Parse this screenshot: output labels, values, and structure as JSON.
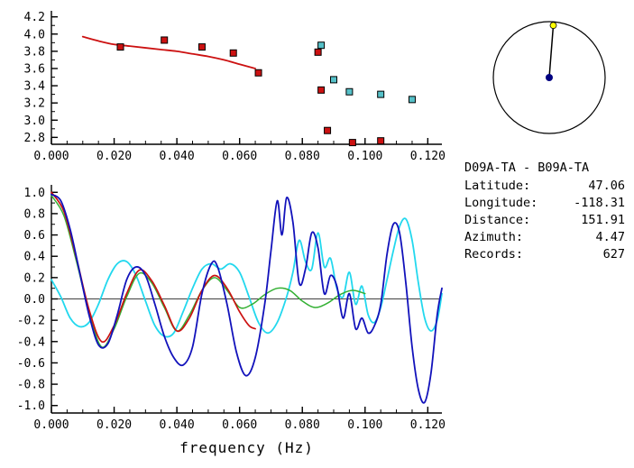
{
  "info": {
    "title": "D09A-TA - B09A-TA",
    "rows": [
      {
        "label": "Latitude:",
        "value": "47.06"
      },
      {
        "label": "Longitude:",
        "value": "-118.31"
      },
      {
        "label": "Distance:",
        "value": "151.91"
      },
      {
        "label": "Azimuth:",
        "value": "4.47"
      },
      {
        "label": "Records:",
        "value": "627"
      }
    ]
  },
  "azimuth_plot": {
    "azimuth_deg": 4.47,
    "circle_color": "#000000",
    "line_color": "#000000",
    "end_marker_color": "#ffff00",
    "center_marker_color": "#000080"
  },
  "chart_data": [
    {
      "name": "dispersion-chart",
      "type": "scatter",
      "title": "",
      "xlabel": "",
      "ylabel": "",
      "xlim": [
        0,
        0.1245
      ],
      "ylim": [
        2.72,
        4.27
      ],
      "grid": false,
      "xticks": [
        0.0,
        0.02,
        0.04,
        0.06,
        0.08,
        0.1,
        0.12
      ],
      "xtick_labels": [
        "0.000",
        "0.020",
        "0.040",
        "0.060",
        "0.080",
        "0.100",
        "0.120"
      ],
      "xtick_minor_step": 0.005,
      "yticks": [
        2.8,
        3.0,
        3.2,
        3.4,
        3.6,
        3.8,
        4.0,
        4.2
      ],
      "ytick_labels": [
        "2.8",
        "3.0",
        "3.2",
        "3.4",
        "3.6",
        "3.8",
        "4.0",
        "4.2"
      ],
      "ytick_minor_step": 0.1,
      "zero_line": false,
      "series": [
        {
          "name": "reference-curve",
          "type": "line",
          "color": "#cc1111",
          "width": 1.8,
          "points": [
            [
              0.01,
              3.97
            ],
            [
              0.015,
              3.92
            ],
            [
              0.02,
              3.88
            ],
            [
              0.025,
              3.86
            ],
            [
              0.03,
              3.84
            ],
            [
              0.035,
              3.82
            ],
            [
              0.04,
              3.8
            ],
            [
              0.045,
              3.77
            ],
            [
              0.05,
              3.74
            ],
            [
              0.055,
              3.7
            ],
            [
              0.06,
              3.65
            ],
            [
              0.065,
              3.6
            ]
          ]
        },
        {
          "name": "measured-red",
          "type": "squares",
          "color": "#cc1111",
          "points": [
            [
              0.022,
              3.85
            ],
            [
              0.036,
              3.93
            ],
            [
              0.048,
              3.85
            ],
            [
              0.058,
              3.78
            ],
            [
              0.066,
              3.55
            ],
            [
              0.085,
              3.79
            ],
            [
              0.086,
              3.35
            ],
            [
              0.088,
              2.88
            ],
            [
              0.096,
              2.74
            ],
            [
              0.105,
              2.76
            ]
          ]
        },
        {
          "name": "measured-cyan",
          "type": "squares",
          "color": "#55c0c8",
          "points": [
            [
              0.086,
              3.87
            ],
            [
              0.09,
              3.47
            ],
            [
              0.095,
              3.33
            ],
            [
              0.105,
              3.3
            ],
            [
              0.115,
              3.24
            ]
          ]
        }
      ]
    },
    {
      "name": "waveform-chart",
      "type": "line",
      "title": "",
      "xlabel": "frequency (Hz)",
      "ylabel": "",
      "xlim": [
        0,
        0.1245
      ],
      "ylim": [
        -1.07,
        1.07
      ],
      "grid": false,
      "xticks": [
        0.0,
        0.02,
        0.04,
        0.06,
        0.08,
        0.1,
        0.12
      ],
      "xtick_labels": [
        "0.000",
        "0.020",
        "0.040",
        "0.060",
        "0.080",
        "0.100",
        "0.120"
      ],
      "xtick_minor_step": 0.005,
      "yticks": [
        -1.0,
        -0.8,
        -0.6,
        -0.4,
        -0.2,
        0.0,
        0.2,
        0.4,
        0.6,
        0.8,
        1.0
      ],
      "ytick_labels": [
        "-1.0",
        "-0.8",
        "-0.6",
        "-0.4",
        "-0.2",
        "0.0",
        "0.2",
        "0.4",
        "0.6",
        "0.8",
        "1.0"
      ],
      "ytick_minor_step": 0.1,
      "zero_line": true,
      "series": [
        {
          "name": "waveform-cyan",
          "type": "line",
          "color": "#22d8ee",
          "width": 1.8,
          "points": [
            [
              0.0,
              0.18
            ],
            [
              0.003,
              0.02
            ],
            [
              0.006,
              -0.18
            ],
            [
              0.009,
              -0.26
            ],
            [
              0.012,
              -0.22
            ],
            [
              0.015,
              -0.05
            ],
            [
              0.018,
              0.18
            ],
            [
              0.021,
              0.33
            ],
            [
              0.024,
              0.35
            ],
            [
              0.027,
              0.22
            ],
            [
              0.03,
              -0.02
            ],
            [
              0.033,
              -0.25
            ],
            [
              0.036,
              -0.35
            ],
            [
              0.039,
              -0.32
            ],
            [
              0.042,
              -0.12
            ],
            [
              0.045,
              0.1
            ],
            [
              0.048,
              0.28
            ],
            [
              0.051,
              0.33
            ],
            [
              0.054,
              0.28
            ],
            [
              0.057,
              0.33
            ],
            [
              0.06,
              0.25
            ],
            [
              0.063,
              0.02
            ],
            [
              0.066,
              -0.22
            ],
            [
              0.069,
              -0.32
            ],
            [
              0.072,
              -0.22
            ],
            [
              0.075,
              0.02
            ],
            [
              0.077,
              0.25
            ],
            [
              0.079,
              0.55
            ],
            [
              0.081,
              0.35
            ],
            [
              0.083,
              0.28
            ],
            [
              0.085,
              0.62
            ],
            [
              0.087,
              0.3
            ],
            [
              0.089,
              0.38
            ],
            [
              0.091,
              0.1
            ],
            [
              0.093,
              0.02
            ],
            [
              0.095,
              0.25
            ],
            [
              0.097,
              -0.05
            ],
            [
              0.099,
              0.12
            ],
            [
              0.101,
              -0.15
            ],
            [
              0.103,
              -0.22
            ],
            [
              0.105,
              -0.08
            ],
            [
              0.107,
              0.18
            ],
            [
              0.109,
              0.45
            ],
            [
              0.111,
              0.68
            ],
            [
              0.113,
              0.75
            ],
            [
              0.115,
              0.55
            ],
            [
              0.117,
              0.15
            ],
            [
              0.119,
              -0.18
            ],
            [
              0.121,
              -0.3
            ],
            [
              0.123,
              -0.2
            ],
            [
              0.1245,
              0.05
            ]
          ]
        },
        {
          "name": "waveform-green",
          "type": "line",
          "color": "#33b033",
          "width": 1.5,
          "points": [
            [
              0.0,
              0.97
            ],
            [
              0.004,
              0.78
            ],
            [
              0.008,
              0.35
            ],
            [
              0.012,
              -0.12
            ],
            [
              0.016,
              -0.45
            ],
            [
              0.02,
              -0.28
            ],
            [
              0.024,
              0.02
            ],
            [
              0.028,
              0.24
            ],
            [
              0.032,
              0.15
            ],
            [
              0.036,
              -0.08
            ],
            [
              0.04,
              -0.3
            ],
            [
              0.044,
              -0.15
            ],
            [
              0.048,
              0.08
            ],
            [
              0.052,
              0.2
            ],
            [
              0.056,
              0.08
            ],
            [
              0.06,
              -0.08
            ],
            [
              0.064,
              -0.05
            ],
            [
              0.068,
              0.04
            ],
            [
              0.072,
              0.1
            ],
            [
              0.076,
              0.08
            ],
            [
              0.08,
              -0.02
            ],
            [
              0.084,
              -0.08
            ],
            [
              0.088,
              -0.04
            ],
            [
              0.092,
              0.04
            ],
            [
              0.096,
              0.08
            ],
            [
              0.1,
              0.05
            ]
          ]
        },
        {
          "name": "waveform-red",
          "type": "line",
          "color": "#cc1111",
          "width": 1.7,
          "points": [
            [
              0.0,
              1.0
            ],
            [
              0.004,
              0.82
            ],
            [
              0.008,
              0.38
            ],
            [
              0.012,
              -0.1
            ],
            [
              0.016,
              -0.4
            ],
            [
              0.02,
              -0.25
            ],
            [
              0.024,
              0.05
            ],
            [
              0.028,
              0.27
            ],
            [
              0.032,
              0.17
            ],
            [
              0.036,
              -0.06
            ],
            [
              0.04,
              -0.3
            ],
            [
              0.044,
              -0.18
            ],
            [
              0.048,
              0.08
            ],
            [
              0.052,
              0.22
            ],
            [
              0.056,
              0.1
            ],
            [
              0.06,
              -0.12
            ],
            [
              0.063,
              -0.25
            ],
            [
              0.065,
              -0.28
            ]
          ]
        },
        {
          "name": "waveform-blue",
          "type": "line",
          "color": "#1212bb",
          "width": 1.8,
          "points": [
            [
              0.0,
              0.98
            ],
            [
              0.003,
              0.92
            ],
            [
              0.006,
              0.65
            ],
            [
              0.009,
              0.25
            ],
            [
              0.012,
              -0.15
            ],
            [
              0.015,
              -0.43
            ],
            [
              0.018,
              -0.42
            ],
            [
              0.021,
              -0.15
            ],
            [
              0.024,
              0.18
            ],
            [
              0.027,
              0.3
            ],
            [
              0.03,
              0.22
            ],
            [
              0.033,
              -0.05
            ],
            [
              0.036,
              -0.35
            ],
            [
              0.039,
              -0.55
            ],
            [
              0.042,
              -0.62
            ],
            [
              0.045,
              -0.45
            ],
            [
              0.048,
              0.05
            ],
            [
              0.051,
              0.33
            ],
            [
              0.053,
              0.3
            ],
            [
              0.056,
              -0.05
            ],
            [
              0.059,
              -0.5
            ],
            [
              0.062,
              -0.72
            ],
            [
              0.065,
              -0.55
            ],
            [
              0.068,
              -0.05
            ],
            [
              0.07,
              0.45
            ],
            [
              0.072,
              0.92
            ],
            [
              0.0735,
              0.6
            ],
            [
              0.075,
              0.95
            ],
            [
              0.077,
              0.72
            ],
            [
              0.079,
              0.15
            ],
            [
              0.081,
              0.28
            ],
            [
              0.083,
              0.62
            ],
            [
              0.085,
              0.48
            ],
            [
              0.087,
              0.05
            ],
            [
              0.089,
              0.22
            ],
            [
              0.091,
              0.12
            ],
            [
              0.093,
              -0.18
            ],
            [
              0.095,
              0.05
            ],
            [
              0.097,
              -0.28
            ],
            [
              0.099,
              -0.18
            ],
            [
              0.101,
              -0.32
            ],
            [
              0.103,
              -0.25
            ],
            [
              0.105,
              -0.05
            ],
            [
              0.107,
              0.42
            ],
            [
              0.109,
              0.7
            ],
            [
              0.111,
              0.62
            ],
            [
              0.113,
              0.15
            ],
            [
              0.115,
              -0.45
            ],
            [
              0.117,
              -0.85
            ],
            [
              0.119,
              -0.97
            ],
            [
              0.121,
              -0.7
            ],
            [
              0.123,
              -0.15
            ],
            [
              0.1245,
              0.1
            ]
          ]
        }
      ]
    }
  ]
}
